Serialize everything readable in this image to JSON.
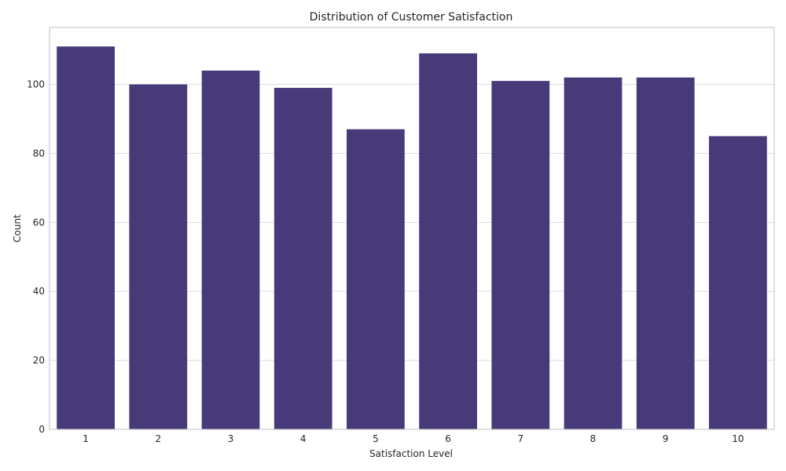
{
  "chart_data": {
    "type": "bar",
    "title": "Distribution of Customer Satisfaction",
    "xlabel": "Satisfaction Level",
    "ylabel": "Count",
    "categories": [
      "1",
      "2",
      "3",
      "4",
      "5",
      "6",
      "7",
      "8",
      "9",
      "10"
    ],
    "values": [
      111,
      100,
      104,
      99,
      87,
      109,
      101,
      102,
      102,
      85
    ],
    "ylim": [
      0,
      116.5
    ],
    "yticks": [
      0,
      20,
      40,
      60,
      80,
      100
    ],
    "grid": true,
    "legend": "none",
    "bar_color": "#483a79",
    "grid_color": "#d9d9d9",
    "frame_color": "#cccccc"
  }
}
